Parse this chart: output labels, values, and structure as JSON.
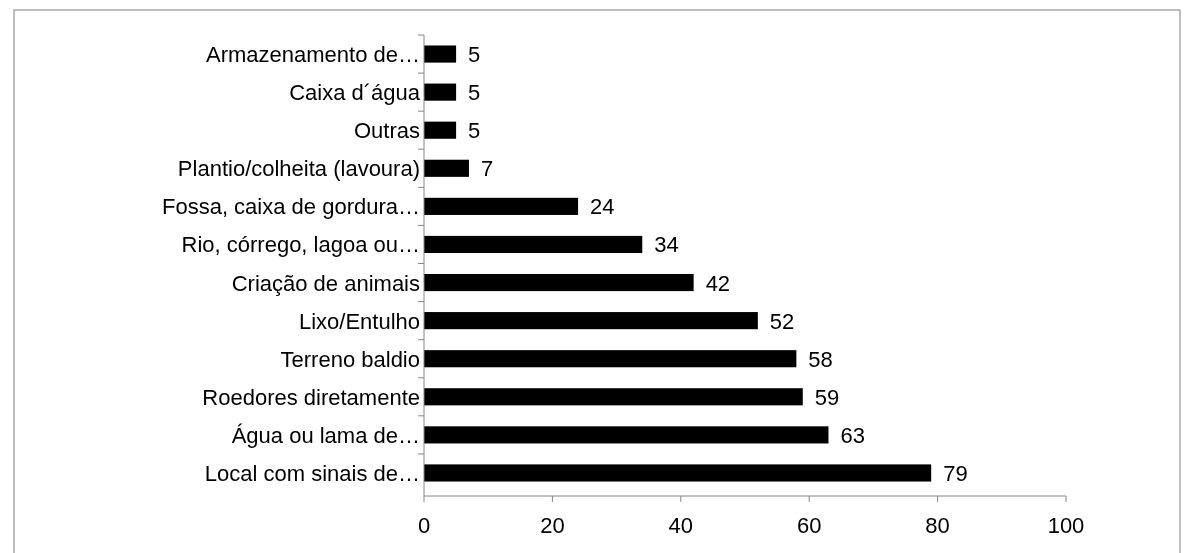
{
  "chart_data": {
    "type": "bar",
    "orientation": "horizontal",
    "categories": [
      "Armazenamento de…",
      "Caixa d´água",
      "Outras",
      "Plantio/colheita (lavoura)",
      "Fossa, caixa de gordura…",
      "Rio, córrego, lagoa ou…",
      "Criação de animais",
      "Lixo/Entulho",
      "Terreno baldio",
      "Roedores diretamente",
      "Água ou lama de…",
      "Local com sinais de…"
    ],
    "values": [
      5,
      5,
      5,
      7,
      24,
      34,
      42,
      52,
      58,
      59,
      63,
      79
    ],
    "color": "#000000",
    "xlim": [
      0,
      100
    ],
    "xticks": [
      0,
      20,
      40,
      60,
      80,
      100
    ],
    "data_labels": true,
    "grid": false
  }
}
